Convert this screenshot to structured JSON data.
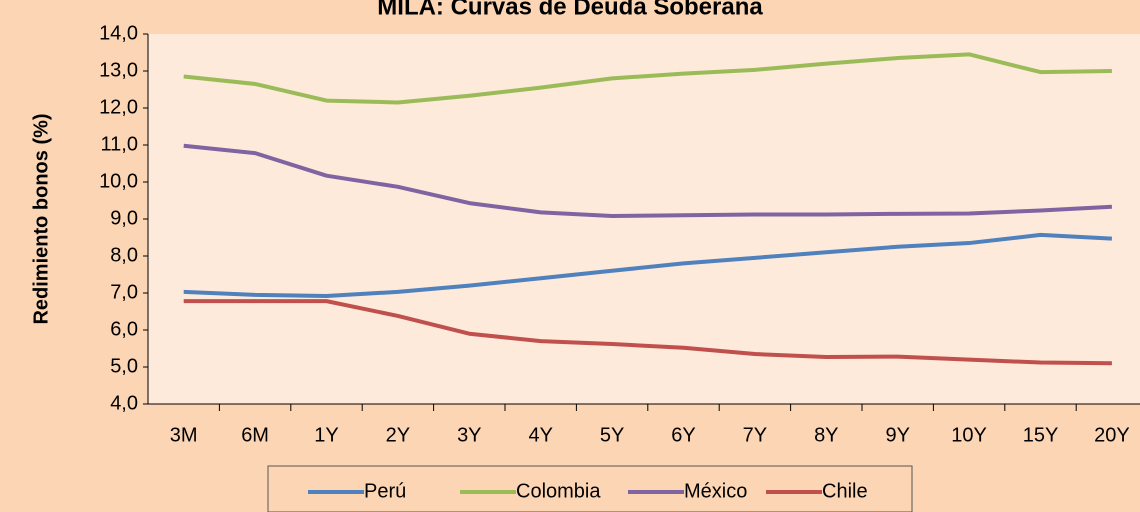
{
  "chart_data": {
    "type": "line",
    "title": "MILA: Curvas de Deuda Soberana",
    "y_label": "Redimiento bonos (%)",
    "categories": [
      "3M",
      "6M",
      "1Y",
      "2Y",
      "3Y",
      "4Y",
      "5Y",
      "6Y",
      "7Y",
      "8Y",
      "9Y",
      "10Y",
      "15Y",
      "20Y"
    ],
    "series": [
      {
        "name": "Perú",
        "color": "#4f81bd",
        "values": [
          7.03,
          6.95,
          6.92,
          7.03,
          7.2,
          7.4,
          7.6,
          7.8,
          7.95,
          8.1,
          8.25,
          8.35,
          8.57,
          8.47
        ]
      },
      {
        "name": "Colombia",
        "color": "#9bbb59",
        "values": [
          12.85,
          12.65,
          12.2,
          12.15,
          12.33,
          12.55,
          12.8,
          12.93,
          13.03,
          13.2,
          13.35,
          13.45,
          12.97,
          13.0
        ]
      },
      {
        "name": "México",
        "color": "#8064a2",
        "values": [
          10.98,
          10.78,
          10.17,
          9.87,
          9.43,
          9.18,
          9.08,
          9.1,
          9.12,
          9.12,
          9.14,
          9.15,
          9.23,
          9.33
        ]
      },
      {
        "name": "Chile",
        "color": "#c0504d",
        "values": [
          6.78,
          6.78,
          6.78,
          6.38,
          5.9,
          5.7,
          5.62,
          5.52,
          5.35,
          5.27,
          5.28,
          5.2,
          5.12,
          5.1
        ]
      }
    ],
    "ylim": [
      4,
      14
    ],
    "yticks": [
      {
        "value": 4,
        "label": "4,0"
      },
      {
        "value": 5,
        "label": "5,0"
      },
      {
        "value": 6,
        "label": "6,0"
      },
      {
        "value": 7,
        "label": "7,0"
      },
      {
        "value": 8,
        "label": "8,0"
      },
      {
        "value": 9,
        "label": "9,0"
      },
      {
        "value": 10,
        "label": "10,0"
      },
      {
        "value": 11,
        "label": "11,0"
      },
      {
        "value": 12,
        "label": "12,0"
      },
      {
        "value": 13,
        "label": "13,0"
      },
      {
        "value": 14,
        "label": "14,0"
      }
    ],
    "grid": false,
    "legend": "bottom"
  }
}
